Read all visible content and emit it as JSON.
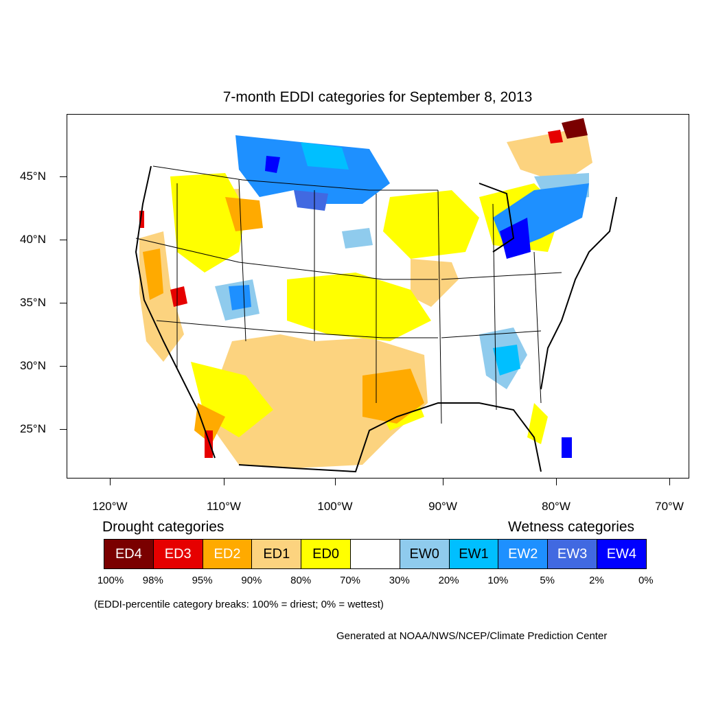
{
  "title": "7-month EDDI categories for September 8, 2013",
  "lat_labels": [
    "45°N",
    "40°N",
    "35°N",
    "30°N",
    "25°N"
  ],
  "lon_labels": [
    "120°W",
    "110°W",
    "100°W",
    "90°W",
    "80°W",
    "70°W"
  ],
  "drought_title": "Drought categories",
  "wetness_title": "Wetness categories",
  "legend": [
    {
      "label": "ED4",
      "color": "#7a0000",
      "text_color": "#ffffff"
    },
    {
      "label": "ED3",
      "color": "#e60000",
      "text_color": "#ffffff"
    },
    {
      "label": "ED2",
      "color": "#ffaa00",
      "text_color": "#ffffff"
    },
    {
      "label": "ED1",
      "color": "#fcd37f",
      "text_color": "#000000"
    },
    {
      "label": "ED0",
      "color": "#ffff00",
      "text_color": "#000000"
    },
    {
      "label": "",
      "color": "#ffffff",
      "text_color": "#000000"
    },
    {
      "label": "EW0",
      "color": "#8fcbed",
      "text_color": "#000000"
    },
    {
      "label": "EW1",
      "color": "#00bfff",
      "text_color": "#000000"
    },
    {
      "label": "EW2",
      "color": "#1e90ff",
      "text_color": "#ffffff"
    },
    {
      "label": "EW3",
      "color": "#4169e1",
      "text_color": "#ffffff"
    },
    {
      "label": "EW4",
      "color": "#0000ff",
      "text_color": "#ffffff"
    }
  ],
  "percent_breaks": [
    "100%",
    "98%",
    "95%",
    "90%",
    "80%",
    "70%",
    "30%",
    "20%",
    "10%",
    "5%",
    "2%",
    "0%"
  ],
  "note": "(EDDI-percentile category breaks: 100% = driest; 0% = wettest)",
  "credit": "Generated at NOAA/NWS/NCEP/Climate Prediction Center"
}
